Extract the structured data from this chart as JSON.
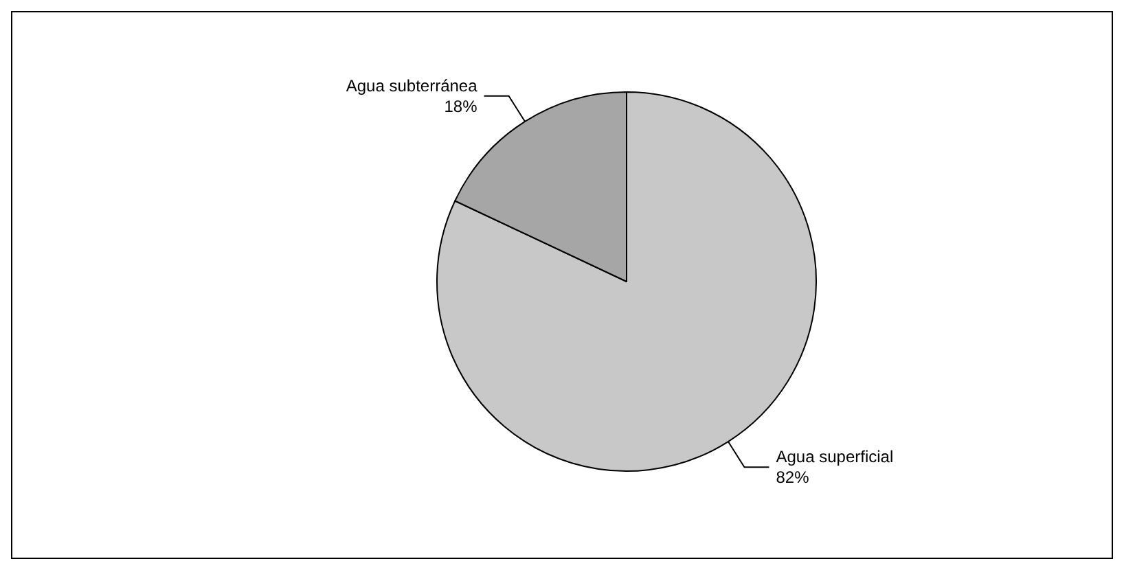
{
  "chart_data": {
    "type": "pie",
    "categories": [
      "Agua superficial",
      "Agua subterránea"
    ],
    "values": [
      82,
      18
    ],
    "value_labels": [
      "82%",
      "18%"
    ],
    "colors": [
      "#c8c8c8",
      "#a6a6a6"
    ]
  }
}
